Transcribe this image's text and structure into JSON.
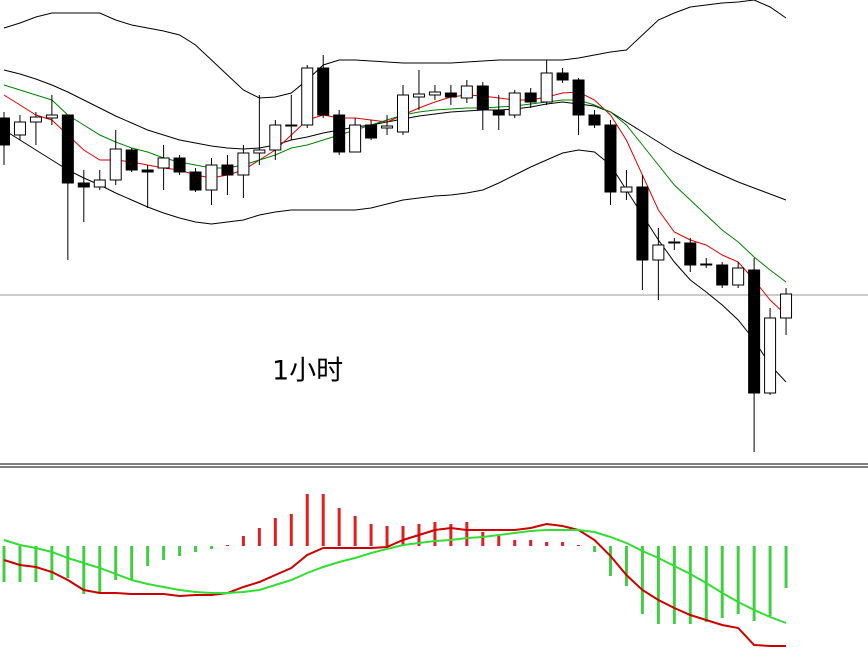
{
  "chart_data": [
    {
      "type": "candlestick",
      "annotation": "1小时",
      "ylim": [
        0,
        465
      ],
      "reference_line": 170,
      "up_color": "#ffffff",
      "down_color": "#000000",
      "open": [
        347,
        330,
        343,
        347,
        350,
        282,
        278,
        285,
        315,
        295,
        297,
        307,
        293,
        275,
        300,
        290,
        312,
        315,
        339,
        340,
        397,
        350,
        313,
        340,
        337,
        333,
        368,
        370,
        372,
        367,
        379,
        355,
        350,
        372,
        363,
        392,
        385,
        350,
        340,
        273,
        278,
        205,
        222,
        222,
        201,
        200,
        180,
        195,
        72,
        147
      ],
      "high": [
        353,
        350,
        353,
        370,
        350,
        295,
        295,
        335,
        317,
        300,
        320,
        310,
        297,
        307,
        310,
        320,
        370,
        345,
        370,
        400,
        410,
        355,
        347,
        345,
        350,
        380,
        395,
        380,
        380,
        385,
        383,
        370,
        375,
        377,
        405,
        397,
        387,
        355,
        345,
        295,
        290,
        237,
        227,
        227,
        207,
        203,
        203,
        207,
        157,
        177
      ],
      "low": [
        300,
        325,
        320,
        340,
        205,
        243,
        275,
        280,
        293,
        257,
        275,
        290,
        273,
        260,
        270,
        267,
        300,
        305,
        325,
        337,
        347,
        310,
        313,
        325,
        330,
        330,
        355,
        365,
        360,
        362,
        335,
        335,
        347,
        357,
        360,
        382,
        330,
        337,
        260,
        265,
        175,
        165,
        215,
        193,
        197,
        177,
        177,
        13,
        70,
        130
      ],
      "close": [
        320,
        343,
        348,
        350,
        282,
        278,
        285,
        316,
        295,
        293,
        307,
        293,
        275,
        300,
        290,
        312,
        315,
        340,
        340,
        397,
        350,
        313,
        340,
        327,
        339,
        370,
        371,
        373,
        368,
        379,
        355,
        350,
        372,
        363,
        392,
        385,
        350,
        340,
        273,
        278,
        205,
        220,
        223,
        200,
        200,
        180,
        197,
        72,
        147,
        171
      ],
      "series": [
        {
          "color": "#000000",
          "values": [
            437,
            442,
            448,
            452,
            452,
            452,
            452,
            445,
            440,
            437,
            434,
            430,
            420,
            405,
            390,
            375,
            367,
            368,
            372,
            385,
            400,
            405,
            405,
            404,
            403,
            402,
            402,
            402,
            402,
            403,
            404,
            405,
            405,
            405,
            405,
            405,
            407,
            410,
            413,
            415,
            430,
            445,
            452,
            458,
            460,
            462,
            463,
            465,
            458,
            447
          ]
        },
        {
          "color": "#000000",
          "values": [
            395,
            391,
            386,
            380,
            373,
            365,
            357,
            349,
            342,
            335,
            330,
            325,
            322,
            319,
            317,
            316,
            317,
            320,
            325,
            328,
            332,
            335,
            338,
            340,
            343,
            346,
            349,
            351,
            353,
            354,
            355,
            355,
            356,
            358,
            361,
            363,
            361,
            359,
            353,
            343,
            333,
            323,
            313,
            305,
            297,
            290,
            283,
            277,
            271,
            265
          ]
        },
        {
          "color": "#000000",
          "values": [
            335,
            325,
            315,
            305,
            295,
            287,
            280,
            272,
            265,
            258,
            252,
            247,
            243,
            241,
            243,
            245,
            250,
            253,
            255,
            255,
            255,
            255,
            255,
            257,
            261,
            265,
            267,
            269,
            270,
            272,
            275,
            282,
            290,
            298,
            305,
            312,
            315,
            313,
            300,
            275,
            250,
            225,
            203,
            185,
            173,
            160,
            145,
            125,
            100,
            83
          ]
        },
        {
          "color": "#e00000",
          "values": [
            370,
            360,
            350,
            345,
            330,
            315,
            305,
            305,
            303,
            300,
            297,
            295,
            290,
            287,
            290,
            295,
            305,
            315,
            330,
            345,
            350,
            347,
            347,
            345,
            343,
            350,
            357,
            363,
            368,
            370,
            369,
            367,
            365,
            365,
            368,
            372,
            373,
            365,
            350,
            325,
            290,
            255,
            233,
            225,
            220,
            210,
            203,
            185,
            165,
            150
          ]
        },
        {
          "color": "#008000",
          "values": [
            380,
            375,
            370,
            365,
            350,
            340,
            330,
            323,
            317,
            313,
            307,
            303,
            300,
            297,
            297,
            300,
            305,
            310,
            317,
            320,
            325,
            330,
            335,
            340,
            345,
            350,
            353,
            355,
            356,
            357,
            357,
            358,
            359,
            361,
            363,
            365,
            365,
            360,
            353,
            340,
            320,
            300,
            280,
            265,
            250,
            235,
            223,
            208,
            195,
            183
          ]
        }
      ]
    },
    {
      "type": "macd",
      "ylim": [
        -102,
        79
      ],
      "up_color": "#dd2020",
      "down_color": "#44cc44",
      "histogram": [
        -36,
        -36,
        -36,
        -34,
        -32,
        -48,
        -48,
        -34,
        -34,
        -20,
        -14,
        -10,
        -6,
        -3,
        1,
        10,
        18,
        28,
        32,
        52,
        52,
        38,
        30,
        22,
        20,
        20,
        22,
        24,
        22,
        24,
        14,
        10,
        6,
        6,
        4,
        4,
        1,
        -6,
        -30,
        -40,
        -68,
        -78,
        -78,
        -78,
        -76,
        -72,
        -68,
        -75,
        -70,
        -42
      ],
      "series": [
        {
          "color": "#cc0000",
          "values": [
            -14,
            -19,
            -21,
            -26,
            -34,
            -44,
            -47,
            -47,
            -48,
            -48,
            -48,
            -50,
            -49,
            -49,
            -47,
            -41,
            -36,
            -29,
            -22,
            -9,
            -2,
            -2,
            -2,
            -2,
            -1,
            6,
            11,
            16,
            18,
            16,
            16,
            16,
            16,
            18,
            22,
            20,
            16,
            6,
            -10,
            -29,
            -44,
            -54,
            -62,
            -69,
            -74,
            -79,
            -82,
            -99,
            -100,
            -100
          ]
        },
        {
          "color": "#33dd33",
          "values": [
            6,
            1,
            -2,
            -6,
            -12,
            -17,
            -22,
            -28,
            -34,
            -38,
            -41,
            -44,
            -46,
            -47,
            -47,
            -46,
            -44,
            -39,
            -34,
            -27,
            -21,
            -16,
            -12,
            -7,
            -3,
            1,
            3,
            5,
            6,
            8,
            9,
            11,
            13,
            15,
            16,
            16,
            16,
            14,
            9,
            3,
            -5,
            -12,
            -20,
            -28,
            -37,
            -47,
            -56,
            -64,
            -71,
            -77
          ]
        }
      ]
    }
  ]
}
